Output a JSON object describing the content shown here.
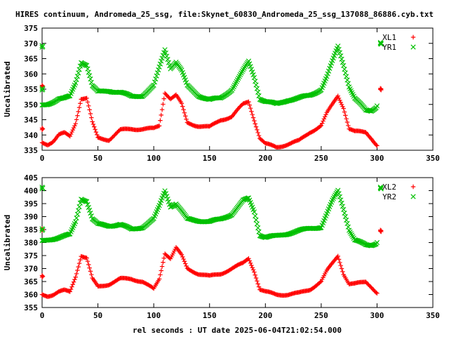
{
  "title": "HIRES continuum, Andromeda_25_ssg, file:Skynet_60830_Andromeda_25_ssg_137088_86886.cyb.txt",
  "xlabel": "rel seconds : UT date 2025-06-04T21:02:54.000",
  "colors": {
    "red": "#ff0000",
    "green": "#00c000"
  },
  "chart_data": [
    {
      "type": "scatter",
      "ylabel": "Uncalibrated",
      "xlim": [
        0,
        350
      ],
      "ylim": [
        335,
        375
      ],
      "xticks": [
        0,
        50,
        100,
        150,
        200,
        250,
        300,
        350
      ],
      "yticks": [
        335,
        340,
        345,
        350,
        355,
        360,
        365,
        370,
        375
      ],
      "grid": false,
      "legend_position": "top-right",
      "series": [
        {
          "name": "XL1",
          "marker": "plus",
          "color": "#ff0000",
          "x": [
            0,
            5,
            10,
            15,
            20,
            25,
            30,
            35,
            40,
            45,
            50,
            60,
            70,
            80,
            90,
            100,
            105,
            110,
            115,
            120,
            125,
            130,
            140,
            150,
            160,
            170,
            180,
            185,
            190,
            195,
            200,
            210,
            220,
            230,
            240,
            250,
            255,
            260,
            265,
            270,
            275,
            280,
            290,
            295,
            300,
            303
          ],
          "y": [
            337.5,
            337,
            338,
            340,
            340.5,
            339.5,
            344,
            352,
            352,
            344,
            339,
            338.5,
            341.5,
            342,
            342,
            342,
            343,
            354,
            352,
            353,
            350,
            344,
            343,
            342.5,
            345,
            346,
            350,
            351,
            345,
            339,
            337,
            336,
            337,
            338,
            341,
            343,
            347,
            350,
            353,
            349,
            342,
            341,
            341,
            339,
            336.5,
            355
          ],
          "extra_points": [
            [
              0,
              356
            ],
            [
              0,
              342
            ]
          ]
        },
        {
          "name": "YR1",
          "marker": "cross",
          "color": "#00c000",
          "x": [
            0,
            5,
            10,
            15,
            20,
            25,
            30,
            35,
            40,
            45,
            50,
            60,
            70,
            80,
            90,
            100,
            105,
            110,
            115,
            120,
            125,
            130,
            140,
            150,
            160,
            170,
            180,
            185,
            190,
            195,
            200,
            210,
            220,
            230,
            240,
            250,
            255,
            260,
            265,
            270,
            275,
            280,
            290,
            295,
            300,
            303
          ],
          "y": [
            349.5,
            350,
            351,
            352,
            352,
            352.5,
            357,
            364,
            363,
            356,
            354,
            354.5,
            354,
            352.5,
            353,
            356,
            362,
            368,
            362,
            364,
            361,
            356,
            353,
            351.5,
            352,
            355,
            361,
            364,
            359,
            352,
            351,
            350,
            351.5,
            352,
            353,
            355,
            359,
            364,
            369,
            363,
            356,
            352,
            348,
            348,
            349.5,
            370
          ],
          "extra_points": [
            [
              0,
              369
            ],
            [
              0,
              355
            ]
          ]
        }
      ]
    },
    {
      "type": "scatter",
      "ylabel": "Uncalibrated",
      "xlim": [
        0,
        350
      ],
      "ylim": [
        355,
        405
      ],
      "xticks": [
        0,
        50,
        100,
        150,
        200,
        250,
        300,
        350
      ],
      "yticks": [
        355,
        360,
        365,
        370,
        375,
        380,
        385,
        390,
        395,
        400,
        405
      ],
      "grid": false,
      "legend_position": "top-right",
      "series": [
        {
          "name": "XL2",
          "marker": "plus",
          "color": "#ff0000",
          "x": [
            0,
            5,
            10,
            15,
            20,
            25,
            30,
            35,
            40,
            45,
            50,
            60,
            70,
            80,
            90,
            100,
            105,
            110,
            115,
            120,
            125,
            130,
            140,
            150,
            160,
            170,
            180,
            185,
            190,
            195,
            200,
            210,
            220,
            230,
            240,
            250,
            255,
            260,
            265,
            270,
            275,
            280,
            290,
            295,
            300,
            303
          ],
          "y": [
            360,
            359.5,
            360,
            361,
            361.5,
            361,
            367,
            375,
            374,
            366,
            363,
            364,
            366,
            366,
            365,
            362,
            366,
            376,
            374,
            378,
            375,
            370,
            368,
            367,
            368,
            370,
            372,
            374,
            369,
            362,
            361,
            360,
            360,
            360.5,
            362,
            365,
            369,
            372,
            375,
            368,
            364,
            364,
            365,
            363,
            360.5,
            384.5
          ],
          "extra_points": [
            [
              0,
              385
            ],
            [
              0,
              367
            ]
          ]
        },
        {
          "name": "YR2",
          "marker": "cross",
          "color": "#00c000",
          "x": [
            0,
            5,
            10,
            15,
            20,
            25,
            30,
            35,
            40,
            45,
            50,
            60,
            70,
            80,
            90,
            100,
            105,
            110,
            115,
            120,
            125,
            130,
            140,
            150,
            160,
            170,
            180,
            185,
            190,
            195,
            200,
            210,
            220,
            230,
            240,
            250,
            255,
            260,
            265,
            270,
            275,
            280,
            290,
            295,
            300,
            303
          ],
          "y": [
            380.5,
            381,
            381.5,
            382,
            382.5,
            383,
            388,
            397,
            396,
            389,
            387,
            386.5,
            387,
            385,
            386,
            389,
            394,
            400,
            394,
            395,
            392,
            389,
            388.5,
            388,
            389,
            391,
            396,
            397,
            392,
            383,
            382,
            382.5,
            383.5,
            384.5,
            385.5,
            386,
            391,
            396,
            400,
            393,
            385,
            381,
            379,
            379,
            380,
            401
          ],
          "extra_points": [
            [
              0,
              401
            ],
            [
              0,
              385
            ]
          ]
        }
      ]
    }
  ]
}
